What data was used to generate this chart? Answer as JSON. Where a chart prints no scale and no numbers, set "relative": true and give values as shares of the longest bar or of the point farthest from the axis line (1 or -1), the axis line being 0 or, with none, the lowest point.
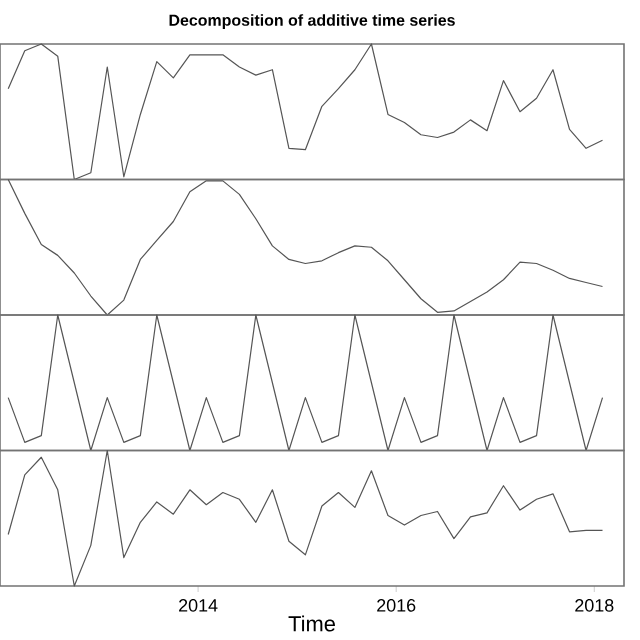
{
  "chart_data": [
    {
      "type": "line",
      "title": "Decomposition of additive time series",
      "relative": true,
      "color": "#555555",
      "xlim": [
        2012.0,
        2018.3
      ],
      "tick_labels": false,
      "x": [
        2012.083,
        2012.25,
        2012.417,
        2012.583,
        2012.75,
        2012.917,
        2013.083,
        2013.25,
        2013.417,
        2013.583,
        2013.75,
        2013.917,
        2014.083,
        2014.25,
        2014.417,
        2014.583,
        2014.75,
        2014.917,
        2015.083,
        2015.25,
        2015.417,
        2015.583,
        2015.75,
        2015.917,
        2016.083,
        2016.25,
        2016.417,
        2016.583,
        2016.75,
        2016.917,
        2017.083,
        2017.25,
        2017.417,
        2017.583,
        2017.75,
        2017.917,
        2018.083
      ],
      "values": [
        0.67,
        0.95,
        1.0,
        0.91,
        0.0,
        0.05,
        0.83,
        0.02,
        0.48,
        0.87,
        0.75,
        0.92,
        0.92,
        0.92,
        0.83,
        0.77,
        0.81,
        0.23,
        0.22,
        0.54,
        0.67,
        0.81,
        1.0,
        0.48,
        0.42,
        0.33,
        0.31,
        0.35,
        0.44,
        0.36,
        0.73,
        0.5,
        0.6,
        0.81,
        0.37,
        0.23,
        0.29
      ]
    },
    {
      "type": "line",
      "relative": true,
      "color": "#555555",
      "xlim": [
        2012.0,
        2018.3
      ],
      "tick_labels": false,
      "x": [
        2012.083,
        2012.25,
        2012.417,
        2012.583,
        2012.75,
        2012.917,
        2013.083,
        2013.25,
        2013.417,
        2013.583,
        2013.75,
        2013.917,
        2014.083,
        2014.25,
        2014.417,
        2014.583,
        2014.75,
        2014.917,
        2015.083,
        2015.25,
        2015.417,
        2015.583,
        2015.75,
        2015.917,
        2016.083,
        2016.25,
        2016.417,
        2016.583,
        2016.75,
        2016.917,
        2017.083,
        2017.25,
        2017.417,
        2017.583,
        2017.75,
        2017.917,
        2018.083
      ],
      "values": [
        1.0,
        0.75,
        0.52,
        0.44,
        0.31,
        0.14,
        0.0,
        0.11,
        0.41,
        0.55,
        0.69,
        0.91,
        0.99,
        0.99,
        0.89,
        0.71,
        0.51,
        0.41,
        0.38,
        0.4,
        0.46,
        0.51,
        0.5,
        0.4,
        0.26,
        0.12,
        0.02,
        0.03,
        0.1,
        0.17,
        0.26,
        0.39,
        0.38,
        0.33,
        0.27,
        0.24,
        0.21
      ]
    },
    {
      "type": "line",
      "relative": true,
      "color": "#555555",
      "xlim": [
        2012.0,
        2018.3
      ],
      "tick_labels": false,
      "x": [
        2012.083,
        2012.25,
        2012.417,
        2012.583,
        2012.75,
        2012.917,
        2013.083,
        2013.25,
        2013.417,
        2013.583,
        2013.75,
        2013.917,
        2014.083,
        2014.25,
        2014.417,
        2014.583,
        2014.75,
        2014.917,
        2015.083,
        2015.25,
        2015.417,
        2015.583,
        2015.75,
        2015.917,
        2016.083,
        2016.25,
        2016.417,
        2016.583,
        2016.75,
        2016.917,
        2017.083,
        2017.25,
        2017.417,
        2017.583,
        2017.75,
        2017.917,
        2018.083
      ],
      "values": [
        0.39,
        0.06,
        0.11,
        1.0,
        0.5,
        0.0,
        0.39,
        0.06,
        0.11,
        1.0,
        0.5,
        0.0,
        0.39,
        0.06,
        0.11,
        1.0,
        0.5,
        0.0,
        0.39,
        0.06,
        0.11,
        1.0,
        0.5,
        0.0,
        0.39,
        0.06,
        0.11,
        1.0,
        0.5,
        0.0,
        0.39,
        0.06,
        0.11,
        1.0,
        0.5,
        0.0,
        0.39
      ]
    },
    {
      "type": "line",
      "relative": true,
      "color": "#555555",
      "xlabel": "Time",
      "xlim": [
        2012.0,
        2018.3
      ],
      "xticks": [
        2014,
        2016,
        2018
      ],
      "tick_labels": "x",
      "x": [
        2012.083,
        2012.25,
        2012.417,
        2012.583,
        2012.75,
        2012.917,
        2013.083,
        2013.25,
        2013.417,
        2013.583,
        2013.75,
        2013.917,
        2014.083,
        2014.25,
        2014.417,
        2014.583,
        2014.75,
        2014.917,
        2015.083,
        2015.25,
        2015.417,
        2015.583,
        2015.75,
        2015.917,
        2016.083,
        2016.25,
        2016.417,
        2016.583,
        2016.75,
        2016.917,
        2017.083,
        2017.25,
        2017.417,
        2017.583,
        2017.75,
        2017.917,
        2018.083
      ],
      "values": [
        0.38,
        0.82,
        0.95,
        0.71,
        0.0,
        0.3,
        1.0,
        0.21,
        0.47,
        0.62,
        0.53,
        0.71,
        0.6,
        0.69,
        0.64,
        0.47,
        0.71,
        0.33,
        0.23,
        0.59,
        0.69,
        0.58,
        0.85,
        0.52,
        0.45,
        0.52,
        0.55,
        0.35,
        0.51,
        0.54,
        0.74,
        0.56,
        0.64,
        0.68,
        0.4,
        0.41,
        0.41
      ]
    }
  ]
}
